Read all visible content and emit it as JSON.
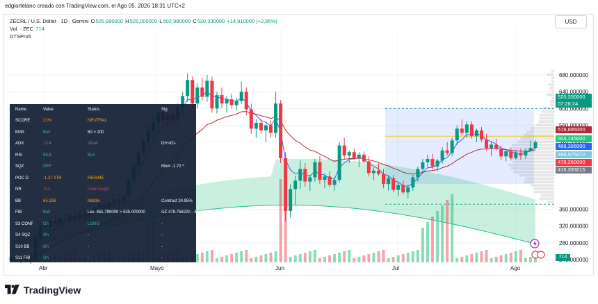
{
  "caption": "edglortelano creado con TradingView.com, el Ago 05, 2026 18:31 UTC+2",
  "legend": {
    "symbol": "ZECRL / U.S. Dollar · 1D · Gemini",
    "open_label": "O",
    "open": "505,980000",
    "high_label": "H",
    "high": "525,000000",
    "low_label": "L",
    "low": "502,980000",
    "close_label": "C",
    "close": "520,330000",
    "change": "+14,910000 (+2,95%)",
    "volume_label": "Vol. · ZEC",
    "volume": "714",
    "indicator": "DTSPro5"
  },
  "currency_button": "USD",
  "volume_badge": "714",
  "brand": "TradingView",
  "price_tags": [
    {
      "text": "520,330000",
      "color": "#089981"
    },
    {
      "text": "07:28:24",
      "color": "#089981"
    },
    {
      "text": "519,895000",
      "color": "#b22833"
    },
    {
      "text": "504,145000",
      "color": "#26c281"
    },
    {
      "text": "488,395000",
      "color": "#2962ff"
    },
    {
      "text": "486,575072",
      "color": "#7ec8e3"
    },
    {
      "text": "478,260000",
      "color": "#f23645"
    },
    {
      "text": "416,393015",
      "color": "#787b86"
    }
  ],
  "dts_table": {
    "headers": [
      "Name",
      "Value",
      "Status",
      "Sig"
    ],
    "rows": [
      {
        "name": "SCORE",
        "value": "21%",
        "status": "NEUTRAL",
        "sig": "",
        "vcolor": "#f7a600",
        "scolor": "#f7a600"
      },
      {
        "name": "EMA",
        "value": "Bull",
        "status": "50 > 200",
        "sig": "",
        "vcolor": "#26c281",
        "scolor": "#ffffff"
      },
      {
        "name": "ADX",
        "value": "13.4",
        "status": "Weak",
        "sig": "DI+>DI-",
        "vcolor": "#787b86",
        "scolor": "#787b86"
      },
      {
        "name": "RSI",
        "value": "56.8",
        "status": "Bull",
        "sig": "",
        "vcolor": "#26c281",
        "scolor": "#26c281"
      },
      {
        "name": "SQZ",
        "value": "OFF",
        "status": "",
        "sig": "Mom -1.72 ^",
        "vcolor": "#26c281",
        "scolor": "#ffffff"
      },
      {
        "name": "POC D",
        "value": "-1.27 ATR",
        "status": "REGIME",
        "sig": "",
        "vcolor": "#f7a600",
        "scolor": "#f7a600"
      },
      {
        "name": "NR",
        "value": "-6.4",
        "status": "Oversought",
        "sig": "",
        "vcolor": "#f23645",
        "scolor": "#f23645"
      },
      {
        "name": "BB",
        "value": "65.19B",
        "status": "Middle",
        "sig": "Contract 24.95%",
        "vcolor": "#f7a600",
        "scolor": "#f7a600"
      },
      {
        "name": "FIB",
        "value": "Bull",
        "status": "Lev. 451.790000 > 535.000000",
        "sig": "GZ 479.756220 - 488.395000",
        "vcolor": "#26c281",
        "scolor": "#ffffff"
      },
      {
        "name": "S3 CONF",
        "value": "On",
        "status": "LONG",
        "sig": "-",
        "vcolor": "#26c281",
        "scolor": "#26c281"
      },
      {
        "name": "S4 SQZ",
        "value": "On",
        "status": "-",
        "sig": "-",
        "vcolor": "#26c281",
        "scolor": "#ffffff"
      },
      {
        "name": "S10 BB",
        "value": "On",
        "status": "-",
        "sig": "-",
        "vcolor": "#26c281",
        "scolor": "#ffffff"
      },
      {
        "name": "S11 FIB",
        "value": "On",
        "status": "-",
        "sig": "-",
        "vcolor": "#26c281",
        "scolor": "#ffffff"
      }
    ]
  },
  "chart_data": {
    "type": "candlestick",
    "y_axis_ticks": [
      "680,000000",
      "640,000000",
      "600,000000",
      "560,000000",
      "520,330000",
      "360,000000",
      "320,000000",
      "280,000000",
      "240,000000"
    ],
    "x_axis_ticks": [
      "Abr",
      "Mayo",
      "Jun",
      "Jul",
      "Ago"
    ],
    "ylim": [
      225,
      700
    ],
    "candles": [
      [
        240,
        248,
        236,
        244
      ],
      [
        244,
        252,
        240,
        238
      ],
      [
        238,
        246,
        232,
        242
      ],
      [
        242,
        250,
        238,
        236
      ],
      [
        236,
        244,
        230,
        240
      ],
      [
        240,
        300,
        238,
        292
      ],
      [
        292,
        330,
        288,
        322
      ],
      [
        322,
        340,
        312,
        318
      ],
      [
        318,
        336,
        306,
        332
      ],
      [
        332,
        346,
        320,
        326
      ],
      [
        326,
        344,
        316,
        338
      ],
      [
        338,
        350,
        328,
        334
      ],
      [
        334,
        352,
        326,
        346
      ],
      [
        346,
        360,
        334,
        340
      ],
      [
        340,
        356,
        330,
        350
      ],
      [
        350,
        362,
        338,
        344
      ],
      [
        344,
        360,
        332,
        356
      ],
      [
        356,
        372,
        346,
        364
      ],
      [
        364,
        380,
        354,
        372
      ],
      [
        372,
        384,
        358,
        366
      ],
      [
        366,
        380,
        354,
        376
      ],
      [
        376,
        392,
        364,
        384
      ],
      [
        384,
        398,
        370,
        378
      ],
      [
        378,
        396,
        364,
        390
      ],
      [
        390,
        440,
        384,
        432
      ],
      [
        432,
        470,
        424,
        462
      ],
      [
        462,
        500,
        454,
        494
      ],
      [
        494,
        530,
        486,
        522
      ],
      [
        522,
        560,
        512,
        548
      ],
      [
        548,
        580,
        530,
        566
      ],
      [
        566,
        600,
        550,
        590
      ],
      [
        590,
        606,
        564,
        572
      ],
      [
        572,
        594,
        556,
        584
      ],
      [
        584,
        598,
        566,
        574
      ],
      [
        574,
        612,
        560,
        604
      ],
      [
        604,
        640,
        590,
        630
      ],
      [
        630,
        684,
        616,
        668
      ],
      [
        668,
        676,
        600,
        612
      ],
      [
        612,
        660,
        600,
        650
      ],
      [
        650,
        672,
        620,
        628
      ],
      [
        628,
        680,
        616,
        666
      ],
      [
        666,
        676,
        590,
        600
      ],
      [
        600,
        640,
        588,
        632
      ],
      [
        632,
        650,
        600,
        612
      ],
      [
        612,
        630,
        590,
        622
      ],
      [
        622,
        636,
        600,
        608
      ],
      [
        608,
        626,
        596,
        618
      ],
      [
        618,
        664,
        610,
        640
      ],
      [
        640,
        650,
        584,
        598
      ],
      [
        598,
        612,
        540,
        552
      ],
      [
        552,
        574,
        530,
        566
      ],
      [
        566,
        576,
        540,
        548
      ],
      [
        548,
        566,
        520,
        560
      ],
      [
        560,
        572,
        530,
        542
      ],
      [
        542,
        640,
        530,
        612
      ],
      [
        612,
        620,
        470,
        482
      ],
      [
        482,
        496,
        330,
        356
      ],
      [
        356,
        420,
        340,
        408
      ],
      [
        408,
        440,
        370,
        428
      ],
      [
        428,
        476,
        408,
        456
      ],
      [
        456,
        470,
        414,
        426
      ],
      [
        426,
        442,
        404,
        436
      ],
      [
        436,
        480,
        426,
        472
      ],
      [
        472,
        486,
        420,
        430
      ],
      [
        430,
        446,
        410,
        438
      ],
      [
        438,
        450,
        412,
        418
      ],
      [
        418,
        436,
        404,
        430
      ],
      [
        430,
        520,
        424,
        512
      ],
      [
        512,
        530,
        480,
        488
      ],
      [
        488,
        500,
        470,
        496
      ],
      [
        496,
        504,
        478,
        482
      ],
      [
        482,
        496,
        460,
        490
      ],
      [
        490,
        498,
        470,
        474
      ],
      [
        474,
        486,
        438,
        446
      ],
      [
        446,
        460,
        430,
        452
      ],
      [
        452,
        470,
        440,
        444
      ],
      [
        444,
        456,
        410,
        420
      ],
      [
        420,
        440,
        404,
        434
      ],
      [
        434,
        442,
        400,
        406
      ],
      [
        406,
        424,
        392,
        418
      ],
      [
        418,
        428,
        396,
        400
      ],
      [
        400,
        420,
        386,
        412
      ],
      [
        412,
        442,
        404,
        436
      ],
      [
        436,
        462,
        426,
        456
      ],
      [
        456,
        480,
        448,
        472
      ],
      [
        472,
        490,
        460,
        480
      ],
      [
        480,
        492,
        456,
        462
      ],
      [
        462,
        480,
        450,
        476
      ],
      [
        476,
        508,
        468,
        500
      ],
      [
        500,
        520,
        488,
        494
      ],
      [
        494,
        530,
        486,
        524
      ],
      [
        524,
        560,
        514,
        552
      ],
      [
        552,
        574,
        536,
        542
      ],
      [
        542,
        570,
        530,
        562
      ],
      [
        562,
        570,
        528,
        534
      ],
      [
        534,
        552,
        520,
        548
      ],
      [
        548,
        556,
        520,
        526
      ],
      [
        526,
        540,
        500,
        506
      ],
      [
        506,
        520,
        486,
        514
      ],
      [
        514,
        528,
        500,
        504
      ],
      [
        504,
        512,
        478,
        486
      ],
      [
        486,
        502,
        474,
        498
      ],
      [
        498,
        506,
        476,
        482
      ],
      [
        482,
        500,
        478,
        494
      ],
      [
        494,
        504,
        478,
        488
      ],
      [
        488,
        506,
        480,
        500
      ],
      [
        500,
        524,
        496,
        506
      ],
      [
        506,
        525,
        503,
        520
      ]
    ],
    "volume_note": "relative volume bars shown at bottom",
    "series": [
      {
        "name": "EMA fast",
        "color": "#2962ff"
      },
      {
        "name": "EMA slow",
        "color": "#b22833"
      }
    ]
  }
}
